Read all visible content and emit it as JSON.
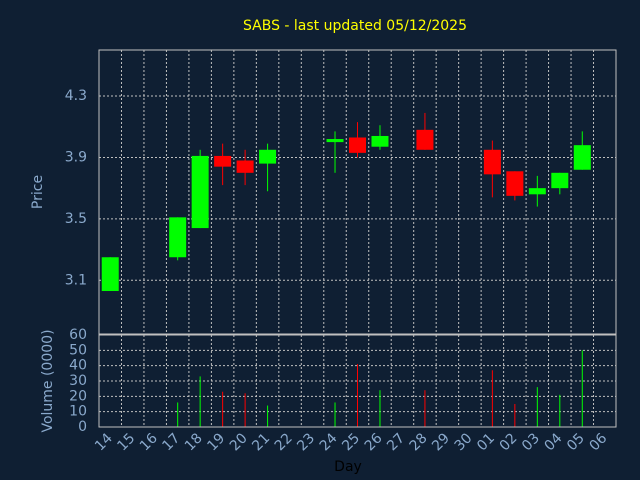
{
  "chart_data": {
    "type": "candlestick",
    "title": "SABS - last updated 05/12/2025",
    "xlabel": "Day",
    "ylabel": "Price",
    "volume_label": "Volume (0000)",
    "price_ticks": [
      "3.1",
      "3.5",
      "3.9",
      "4.3"
    ],
    "volume_ticks": [
      "0",
      "10",
      "20",
      "30",
      "40",
      "50",
      "60"
    ],
    "ylim": [
      2.75,
      4.6
    ],
    "volume_ylim": [
      0,
      60
    ],
    "grid": true,
    "categories": [
      "14",
      "15",
      "16",
      "17",
      "18",
      "19",
      "20",
      "21",
      "22",
      "23",
      "24",
      "25",
      "26",
      "27",
      "28",
      "29",
      "30",
      "01",
      "02",
      "03",
      "04",
      "05",
      "06"
    ],
    "candles": [
      {
        "day": "14",
        "open": 3.03,
        "close": 3.25,
        "high": 3.25,
        "low": 3.03,
        "volume": 0
      },
      {
        "day": "17",
        "open": 3.25,
        "close": 3.51,
        "high": 3.51,
        "low": 3.23,
        "volume": 16
      },
      {
        "day": "18",
        "open": 3.44,
        "close": 3.91,
        "high": 3.95,
        "low": 3.44,
        "volume": 33
      },
      {
        "day": "19",
        "open": 3.91,
        "close": 3.84,
        "high": 3.99,
        "low": 3.72,
        "volume": 23
      },
      {
        "day": "20",
        "open": 3.88,
        "close": 3.8,
        "high": 3.95,
        "low": 3.72,
        "volume": 22
      },
      {
        "day": "21",
        "open": 3.86,
        "close": 3.95,
        "high": 3.99,
        "low": 3.68,
        "volume": 14
      },
      {
        "day": "24",
        "open": 4.0,
        "close": 4.02,
        "high": 4.07,
        "low": 3.8,
        "volume": 16
      },
      {
        "day": "25",
        "open": 4.03,
        "close": 3.93,
        "high": 4.13,
        "low": 3.9,
        "volume": 41
      },
      {
        "day": "26",
        "open": 3.97,
        "close": 4.04,
        "high": 4.11,
        "low": 3.95,
        "volume": 24
      },
      {
        "day": "28",
        "open": 4.08,
        "close": 3.95,
        "high": 4.19,
        "low": 3.95,
        "volume": 24
      },
      {
        "day": "01",
        "open": 3.95,
        "close": 3.79,
        "high": 4.01,
        "low": 3.64,
        "volume": 37
      },
      {
        "day": "02",
        "open": 3.81,
        "close": 3.65,
        "high": 3.81,
        "low": 3.62,
        "volume": 15
      },
      {
        "day": "03",
        "open": 3.66,
        "close": 3.7,
        "high": 3.78,
        "low": 3.58,
        "volume": 26
      },
      {
        "day": "04",
        "open": 3.7,
        "close": 3.8,
        "high": 3.8,
        "low": 3.66,
        "volume": 21
      },
      {
        "day": "05",
        "open": 3.82,
        "close": 3.98,
        "high": 4.07,
        "low": 3.82,
        "volume": 50
      }
    ],
    "colors": {
      "background": "#0f1f33",
      "up": "#00ff00",
      "down": "#ff0000",
      "grid": "#c0c0c0",
      "title": "#ffff00",
      "tick": "#8aa9cc",
      "xlabel": "#000000"
    }
  }
}
